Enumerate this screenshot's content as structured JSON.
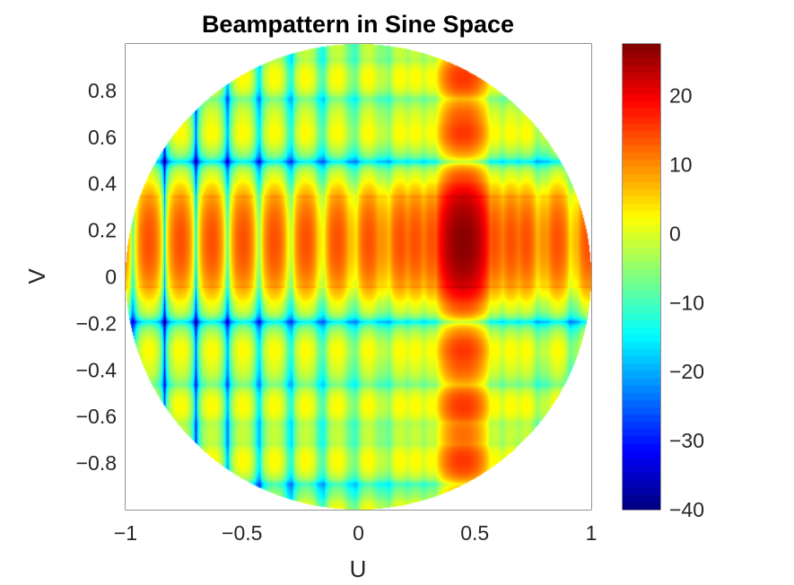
{
  "chart_data": {
    "type": "heatmap",
    "title": "Beampattern in Sine Space",
    "xlabel": "U",
    "ylabel": "V",
    "xlim": [
      -1,
      1
    ],
    "ylim": [
      -1,
      1
    ],
    "x_ticks": [
      -1,
      -0.5,
      0,
      0.5,
      1
    ],
    "x_tick_labels": [
      "−1",
      "−0.5",
      "0",
      "0.5",
      "1"
    ],
    "y_ticks": [
      -0.8,
      -0.6,
      -0.4,
      -0.2,
      0,
      0.2,
      0.4,
      0.6,
      0.8
    ],
    "y_tick_labels": [
      "−0.8",
      "−0.6",
      "−0.4",
      "−0.2",
      "0",
      "0.2",
      "0.4",
      "0.6",
      "0.8"
    ],
    "colorbar": {
      "colormap": "jet",
      "clim": [
        -40,
        27.5
      ],
      "ticks": [
        -40,
        -30,
        -20,
        -10,
        0,
        10,
        20
      ],
      "tick_labels": [
        "−40",
        "−30",
        "−20",
        "−10",
        "0",
        "10",
        "20"
      ]
    },
    "visible_region": "unit circle u^2 + v^2 <= 1",
    "main_beam": {
      "u": 0.45,
      "v": 0.15,
      "peak_db": 27
    },
    "row_grating_v_centers": [
      0.15,
      -0.25,
      -0.45,
      -0.72,
      0.55,
      0.8
    ],
    "column_grating_u_centers": [
      -0.88,
      -0.74,
      -0.6,
      -0.48,
      -0.36,
      -0.24,
      -0.1,
      0.02,
      0.15,
      0.28,
      0.45,
      0.63,
      0.76,
      0.89
    ]
  }
}
